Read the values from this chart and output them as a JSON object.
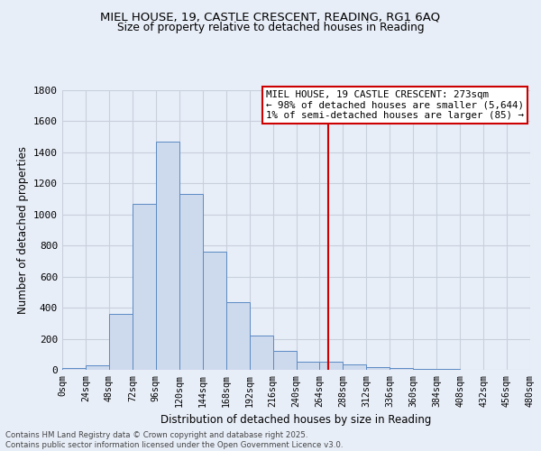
{
  "title_line1": "MIEL HOUSE, 19, CASTLE CRESCENT, READING, RG1 6AQ",
  "title_line2": "Size of property relative to detached houses in Reading",
  "xlabel": "Distribution of detached houses by size in Reading",
  "ylabel": "Number of detached properties",
  "bin_edges": [
    0,
    24,
    48,
    72,
    96,
    120,
    144,
    168,
    192,
    216,
    240,
    264,
    288,
    312,
    336,
    360,
    384,
    408,
    432,
    456,
    480
  ],
  "bar_heights": [
    10,
    30,
    360,
    1070,
    1470,
    1130,
    760,
    435,
    220,
    120,
    55,
    50,
    35,
    20,
    10,
    5,
    3,
    1,
    0,
    0
  ],
  "bar_face_color": "#cdd9ec",
  "bar_edge_color": "#5b8ac4",
  "vline_x": 273,
  "vline_color": "#cc0000",
  "annotation_title": "MIEL HOUSE, 19 CASTLE CRESCENT: 273sqm",
  "annotation_line2": "← 98% of detached houses are smaller (5,644)",
  "annotation_line3": "1% of semi-detached houses are larger (85) →",
  "bg_color": "#e8eef8",
  "grid_color": "#c8d0dc",
  "ylim": [
    0,
    1800
  ],
  "xlim": [
    0,
    480
  ],
  "yticks": [
    0,
    200,
    400,
    600,
    800,
    1000,
    1200,
    1400,
    1600,
    1800
  ],
  "footer_line1": "Contains HM Land Registry data © Crown copyright and database right 2025.",
  "footer_line2": "Contains public sector information licensed under the Open Government Licence v3.0."
}
